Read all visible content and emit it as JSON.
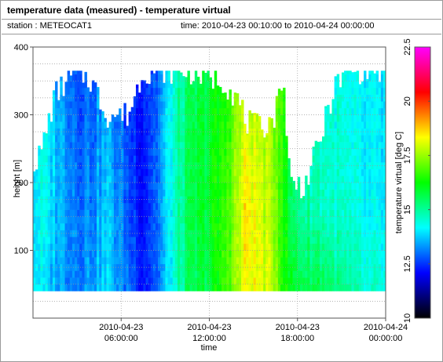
{
  "window": {
    "title": "temperature data (measured) - temperature virtual",
    "station_text": "station : METEOCAT1",
    "time_text": "time: 2010-04-23 00:10:00 to 2010-04-24 00:00:00"
  },
  "chart_data": {
    "type": "heatmap",
    "title": "temperature data (measured) - temperature virtual",
    "xlabel": "time",
    "ylabel": "height [m]",
    "colorbar_label": "temperature virtual [deg C]",
    "xlim": [
      0,
      24
    ],
    "x_ticks": [
      {
        "value": 6,
        "date": "2010-04-23",
        "time": "06:00:00"
      },
      {
        "value": 12,
        "date": "2010-04-23",
        "time": "12:00:00"
      },
      {
        "value": 18,
        "date": "2010-04-23",
        "time": "18:00:00"
      },
      {
        "value": 24,
        "date": "2010-04-24",
        "time": "00:00:00"
      }
    ],
    "ylim": [
      0,
      400
    ],
    "y_ticks": [
      100,
      200,
      300,
      400
    ],
    "colorbar_range": [
      10,
      22.5
    ],
    "colorbar_ticks": [
      10,
      12.5,
      15,
      17.5,
      20,
      22.5
    ],
    "colormap": [
      "#000000",
      "#0000ff",
      "#00ffff",
      "#00ff00",
      "#ffff00",
      "#ff0000",
      "#ff00ff"
    ],
    "grid": true,
    "height_step_m": 10,
    "height_min_m": 40,
    "time_step_h": 0.1667,
    "anchors": [
      {
        "t": 0.0,
        "top": 230,
        "temps": [
          14.2,
          14.0,
          14.0,
          14.5
        ]
      },
      {
        "t": 0.5,
        "top": 240,
        "temps": [
          14.0,
          14.2,
          14.3,
          14.5
        ]
      },
      {
        "t": 1.5,
        "top": 330,
        "temps": [
          13.5,
          13.8,
          13.8,
          13.6
        ]
      },
      {
        "t": 3.0,
        "top": 365,
        "temps": [
          13.2,
          13.2,
          13.0,
          12.8
        ]
      },
      {
        "t": 4.0,
        "top": 350,
        "temps": [
          13.5,
          13.2,
          13.0,
          13.0
        ]
      },
      {
        "t": 5.0,
        "top": 300,
        "temps": [
          13.8,
          13.8,
          13.6,
          13.5
        ]
      },
      {
        "t": 6.5,
        "top": 300,
        "temps": [
          13.0,
          12.8,
          12.6,
          12.6
        ]
      },
      {
        "t": 7.5,
        "top": 365,
        "temps": [
          12.4,
          12.3,
          12.3,
          12.5
        ]
      },
      {
        "t": 8.5,
        "top": 365,
        "temps": [
          12.8,
          13.0,
          13.0,
          12.9
        ]
      },
      {
        "t": 9.5,
        "top": 365,
        "temps": [
          14.3,
          14.4,
          14.5,
          14.4
        ]
      },
      {
        "t": 10.5,
        "top": 365,
        "temps": [
          15.3,
          15.4,
          15.4,
          15.3
        ]
      },
      {
        "t": 12.0,
        "top": 355,
        "temps": [
          15.8,
          16.0,
          16.0,
          15.8
        ]
      },
      {
        "t": 13.0,
        "top": 350,
        "temps": [
          16.6,
          16.6,
          16.4,
          16.2
        ]
      },
      {
        "t": 14.0,
        "top": 320,
        "temps": [
          17.6,
          17.8,
          17.6,
          17.5
        ]
      },
      {
        "t": 14.5,
        "top": 290,
        "temps": [
          18.2,
          18.6,
          18.2,
          17.6
        ]
      },
      {
        "t": 15.5,
        "top": 280,
        "temps": [
          18.2,
          18.0,
          17.8,
          17.6
        ]
      },
      {
        "t": 16.5,
        "top": 300,
        "temps": [
          17.6,
          17.4,
          17.3,
          17.2
        ]
      },
      {
        "t": 17.0,
        "top": 365,
        "temps": [
          16.5,
          16.6,
          16.8,
          16.9
        ]
      },
      {
        "t": 17.5,
        "top": 200,
        "temps": [
          16.0,
          15.5,
          15.3,
          15.2
        ]
      },
      {
        "t": 18.5,
        "top": 195,
        "temps": [
          15.6,
          15.0,
          14.8,
          14.8
        ]
      },
      {
        "t": 19.5,
        "top": 260,
        "temps": [
          15.8,
          14.8,
          14.6,
          14.5
        ]
      },
      {
        "t": 20.5,
        "top": 340,
        "temps": [
          15.2,
          14.6,
          14.5,
          14.4
        ]
      },
      {
        "t": 21.5,
        "top": 365,
        "temps": [
          14.8,
          14.4,
          14.2,
          14.1
        ]
      },
      {
        "t": 22.5,
        "top": 365,
        "temps": [
          14.5,
          14.1,
          14.0,
          14.0
        ]
      },
      {
        "t": 24.0,
        "top": 365,
        "temps": [
          14.4,
          14.0,
          13.9,
          13.9
        ]
      }
    ],
    "anchor_heights": [
      40,
      150,
      260,
      365
    ]
  }
}
